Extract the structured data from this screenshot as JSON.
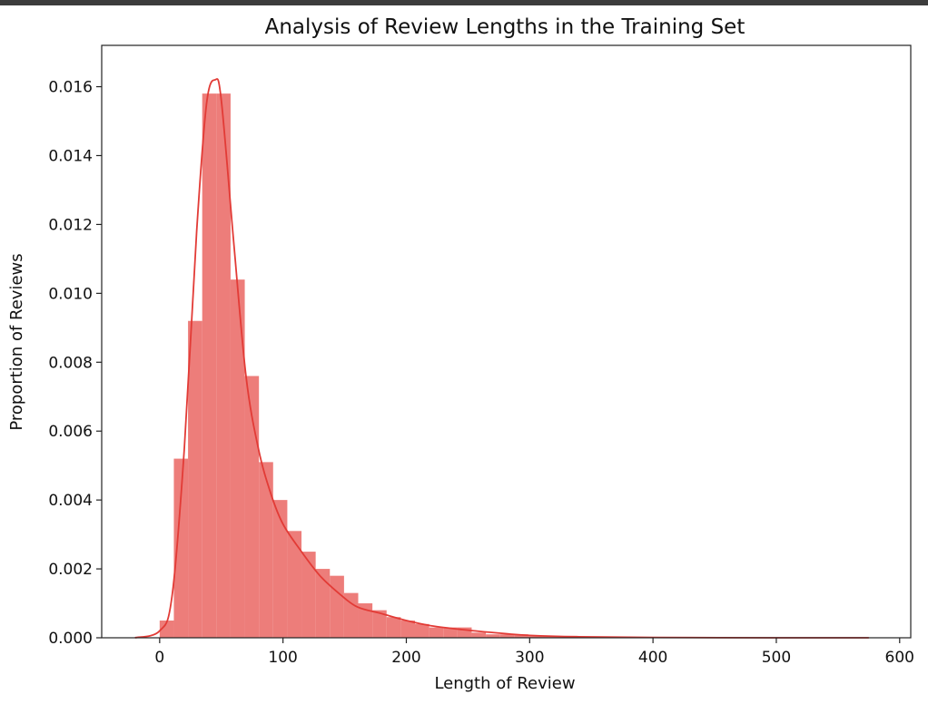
{
  "chart_data": {
    "type": "bar",
    "title": "Analysis of Review Lengths in the Training Set",
    "xlabel": "Length of Review",
    "ylabel": "Proportion of Reviews",
    "xlim": [
      -47,
      609
    ],
    "ylim": [
      0,
      0.0172
    ],
    "xticks": [
      0,
      100,
      200,
      300,
      400,
      500,
      600
    ],
    "yticks": [
      0.0,
      0.002,
      0.004,
      0.006,
      0.008,
      0.01,
      0.012,
      0.014,
      0.016
    ],
    "ytick_labels": [
      "0.000",
      "0.002",
      "0.004",
      "0.006",
      "0.008",
      "0.010",
      "0.012",
      "0.014",
      "0.016"
    ],
    "grid": false,
    "colors": {
      "bars": "#eb6f6c",
      "kde": "#e23b36",
      "axes": "#222222"
    },
    "bins": {
      "x": [
        0,
        11.5,
        23,
        34.5,
        46,
        57.5,
        69,
        80.5,
        92,
        103.5,
        115,
        126.5,
        138,
        149.5,
        161,
        172.5,
        184,
        195.5,
        207,
        218.5,
        230,
        241.5,
        253,
        264.5,
        276,
        287.5,
        299,
        310.5,
        322,
        333.5,
        345
      ],
      "values": [
        0.0005,
        0.0052,
        0.0092,
        0.0158,
        0.0158,
        0.0104,
        0.0076,
        0.0051,
        0.004,
        0.0031,
        0.0025,
        0.002,
        0.0018,
        0.0013,
        0.001,
        0.0008,
        0.0006,
        0.0005,
        0.0004,
        0.0003,
        0.0003,
        0.0003,
        0.00015,
        0.0001,
        0.0001,
        0.0001,
        5e-05,
        4e-05,
        3e-05,
        2e-05,
        1e-05
      ]
    },
    "kde": {
      "x": [
        -20,
        0,
        10,
        20,
        30,
        38,
        45,
        50,
        60,
        70,
        80,
        90,
        100,
        115,
        130,
        145,
        160,
        180,
        200,
        220,
        250,
        280,
        300,
        340,
        400,
        500,
        575
      ],
      "y": [
        0.0,
        0.0002,
        0.0012,
        0.0055,
        0.0118,
        0.0155,
        0.0162,
        0.0156,
        0.0115,
        0.0076,
        0.0055,
        0.0042,
        0.0033,
        0.0025,
        0.0018,
        0.0013,
        0.0009,
        0.0007,
        0.0005,
        0.00035,
        0.00022,
        0.00012,
        7e-05,
        3e-05,
        1e-05,
        0.0,
        0.0
      ]
    }
  }
}
